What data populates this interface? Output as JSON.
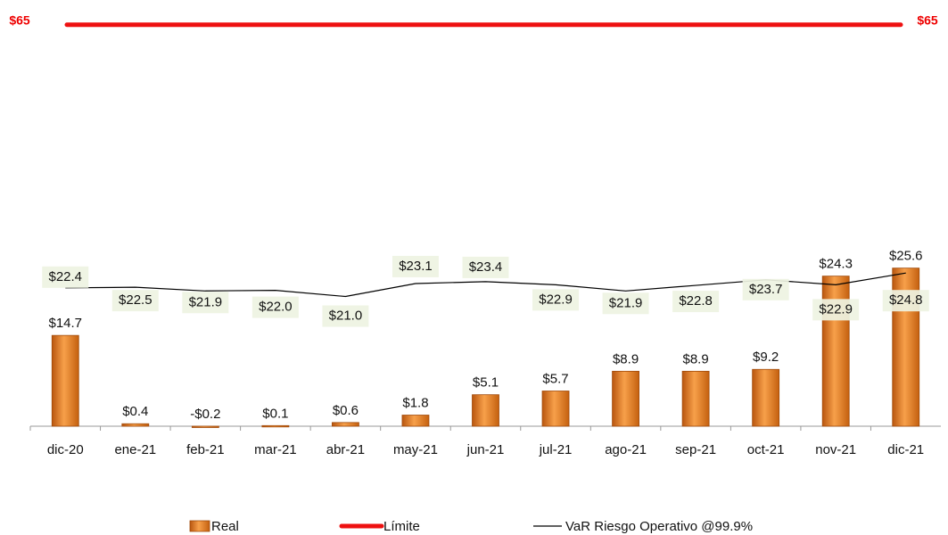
{
  "chart_data": {
    "type": "bar+line",
    "categories": [
      "dic-20",
      "ene-21",
      "feb-21",
      "mar-21",
      "abr-21",
      "may-21",
      "jun-21",
      "jul-21",
      "ago-21",
      "sep-21",
      "oct-21",
      "nov-21",
      "dic-21"
    ],
    "ylim": [
      0,
      69
    ],
    "series": [
      {
        "name": "Real",
        "type": "bar",
        "color": "#e87722",
        "values": [
          14.7,
          0.4,
          -0.2,
          0.1,
          0.6,
          1.8,
          5.1,
          5.7,
          8.9,
          8.9,
          9.2,
          24.3,
          25.6
        ],
        "value_labels": [
          "$14.7",
          "$0.4",
          "-$0.2",
          "$0.1",
          "$0.6",
          "$1.8",
          "$5.1",
          "$5.7",
          "$8.9",
          "$8.9",
          "$9.2",
          "$24.3",
          "$25.6"
        ]
      },
      {
        "name": "Límite",
        "type": "limit",
        "color": "#ee1111",
        "values": [
          65,
          65,
          65,
          65,
          65,
          65,
          65,
          65,
          65,
          65,
          65,
          65,
          65
        ],
        "value_labels": [
          "$65",
          null,
          null,
          null,
          null,
          null,
          null,
          null,
          null,
          null,
          null,
          null,
          "$65"
        ]
      },
      {
        "name": "VaR Riesgo Operativo @99.9%",
        "type": "line",
        "color": "#000000",
        "values": [
          22.4,
          22.5,
          21.9,
          22.0,
          21.0,
          23.1,
          23.4,
          22.9,
          21.9,
          22.8,
          23.7,
          22.9,
          24.8
        ],
        "value_labels": [
          "$22.4",
          "$22.5",
          "$21.9",
          "$22.0",
          "$21.0",
          "$23.1",
          "$23.4",
          "$22.9",
          "$21.9",
          "$22.8",
          "$23.7",
          "$22.9",
          "$24.8"
        ]
      }
    ]
  }
}
